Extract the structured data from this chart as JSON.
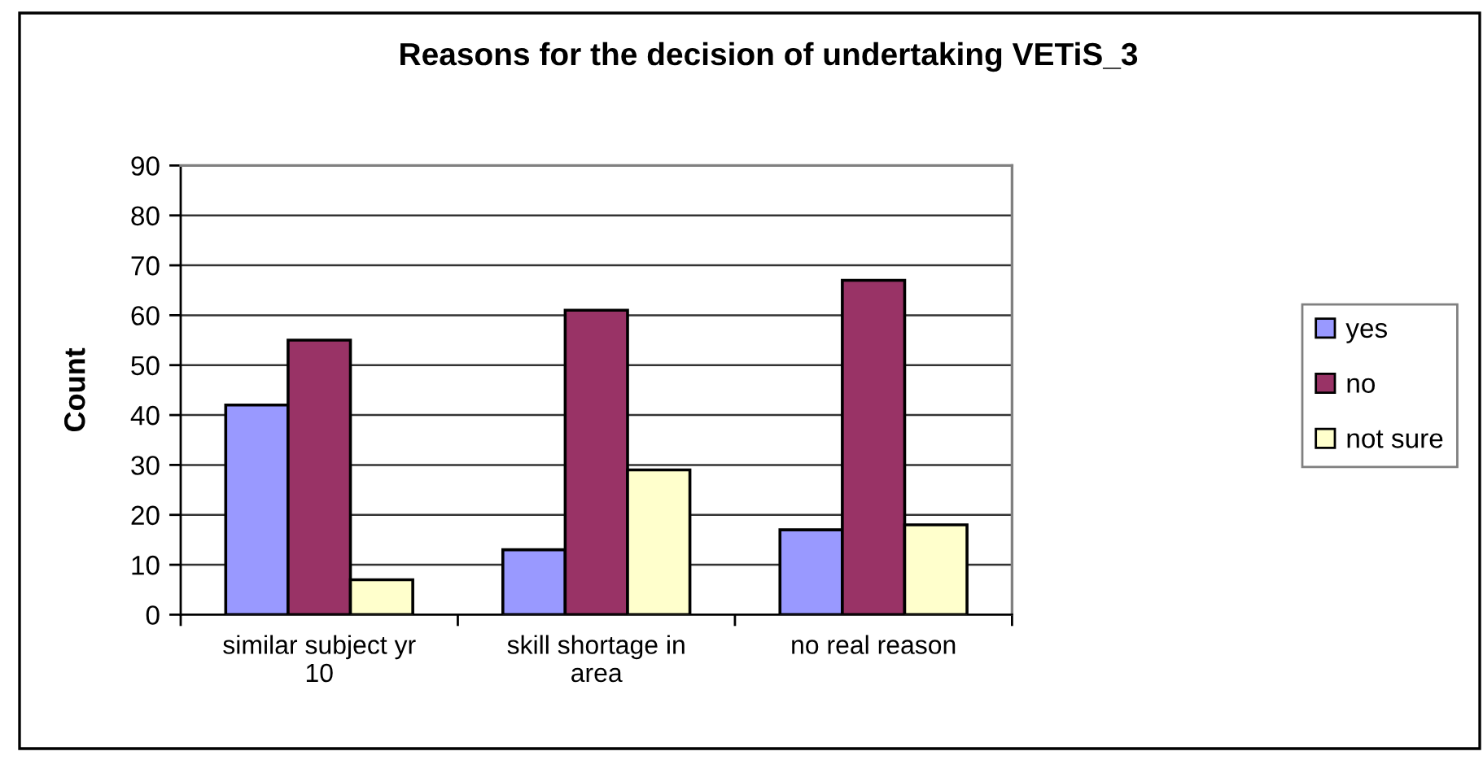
{
  "chart_data": {
    "type": "bar",
    "title": "Reasons for the decision of undertaking VETiS_3",
    "ylabel": "Count",
    "categories": [
      "similar subject yr\n10",
      "skill shortage in\narea",
      "no real reason"
    ],
    "series": [
      {
        "name": "yes",
        "color": "#9999ff",
        "values": [
          42,
          13,
          17
        ]
      },
      {
        "name": "no",
        "color": "#993366",
        "values": [
          55,
          61,
          67
        ]
      },
      {
        "name": "not sure",
        "color": "#ffffcc",
        "values": [
          7,
          29,
          18
        ]
      }
    ],
    "ylim": [
      0,
      90
    ],
    "yticks": [
      0,
      10,
      20,
      30,
      40,
      50,
      60,
      70,
      80,
      90
    ],
    "grid": "y",
    "legend": "right"
  }
}
